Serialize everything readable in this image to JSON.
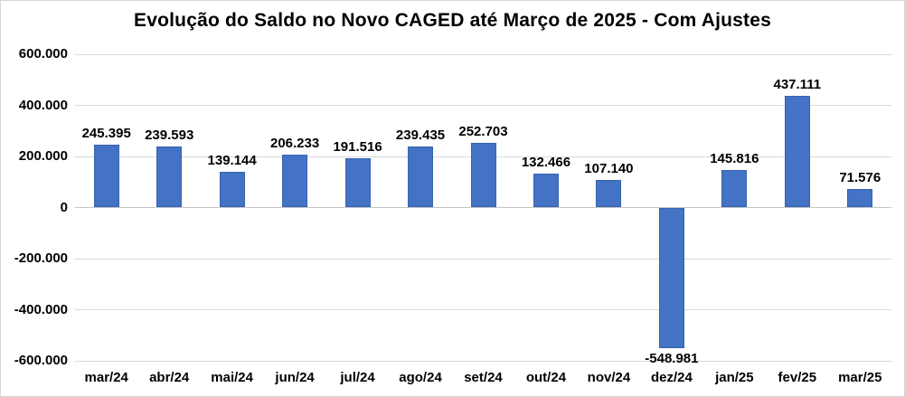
{
  "chart_data": {
    "type": "bar",
    "title": "Evolução do Saldo no Novo CAGED até Março de 2025 - Com Ajustes",
    "categories": [
      "mar/24",
      "abr/24",
      "mai/24",
      "jun/24",
      "jul/24",
      "ago/24",
      "set/24",
      "out/24",
      "nov/24",
      "dez/24",
      "jan/25",
      "fev/25",
      "mar/25"
    ],
    "values": [
      245395,
      239593,
      139144,
      206233,
      191516,
      239435,
      252703,
      132466,
      107140,
      -548981,
      145816,
      437111,
      71576
    ],
    "data_labels": [
      "245.395",
      "239.593",
      "139.144",
      "206.233",
      "191.516",
      "239.435",
      "252.703",
      "132.466",
      "107.140",
      "-548.981",
      "145.816",
      "437.111",
      "71.576"
    ],
    "xlabel": "",
    "ylabel": "",
    "ylim": [
      -600000,
      600000
    ],
    "ytick_step": 200000,
    "ytick_labels": [
      "600.000",
      "400.000",
      "200.000",
      "0",
      "-200.000",
      "-400.000",
      "-600.000"
    ],
    "grid": true,
    "legend": false,
    "colors": {
      "bar": "#4472C4",
      "bar_border": "#3563AE",
      "gridline": "#D9D9D9",
      "axis_line": "#C6C6C6",
      "text": "#000000",
      "background": "#FFFFFF"
    }
  }
}
